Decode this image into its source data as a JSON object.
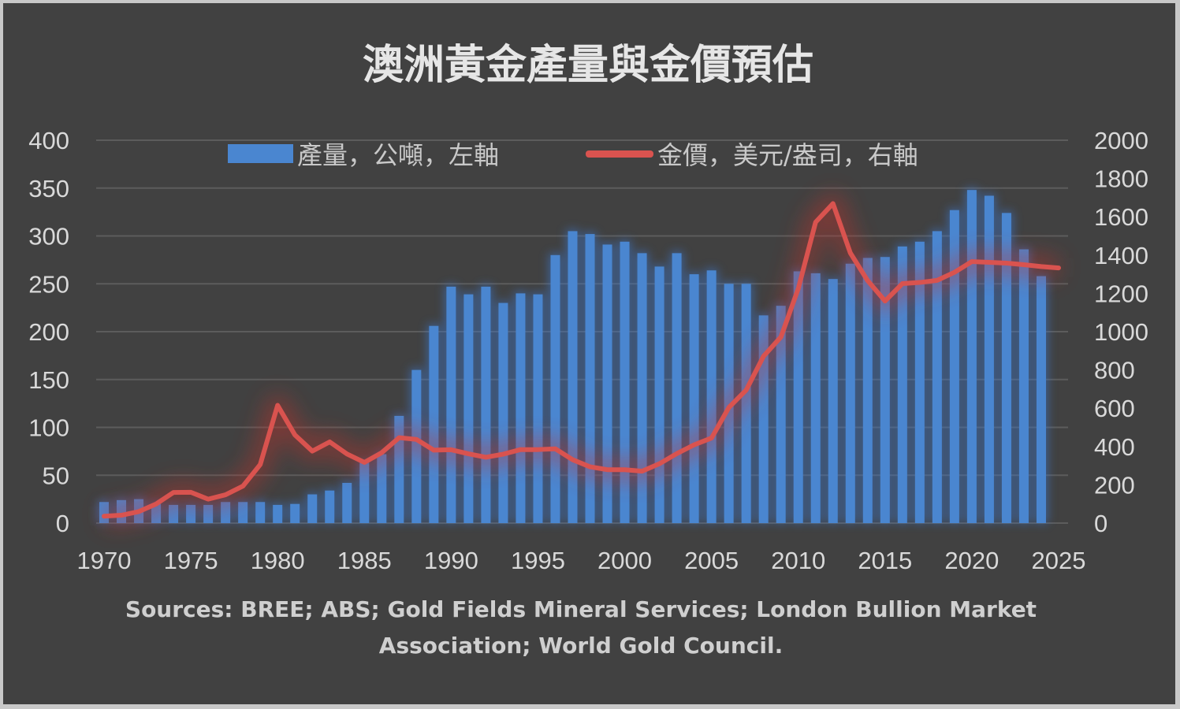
{
  "chart_data": {
    "type": "bar",
    "title": "澳洲黃金產量與金價預估",
    "x": [
      1970,
      1971,
      1972,
      1973,
      1974,
      1975,
      1976,
      1977,
      1978,
      1979,
      1980,
      1981,
      1982,
      1983,
      1984,
      1985,
      1986,
      1987,
      1988,
      1989,
      1990,
      1991,
      1992,
      1993,
      1994,
      1995,
      1996,
      1997,
      1998,
      1999,
      2000,
      2001,
      2002,
      2003,
      2004,
      2005,
      2006,
      2007,
      2008,
      2009,
      2010,
      2011,
      2012,
      2013,
      2014,
      2015,
      2016,
      2017,
      2018,
      2019,
      2020,
      2021,
      2022,
      2023,
      2024,
      2025
    ],
    "series": [
      {
        "name": "產量，公噸，左軸",
        "type": "bar",
        "axis": "left",
        "color": "#4a86d0",
        "values": [
          22,
          24,
          25,
          20,
          19,
          19,
          19,
          22,
          22,
          22,
          19,
          20,
          30,
          34,
          42,
          63,
          72,
          112,
          160,
          206,
          247,
          239,
          247,
          230,
          240,
          239,
          280,
          305,
          302,
          291,
          294,
          282,
          268,
          282,
          260,
          264,
          250,
          250,
          217,
          227,
          263,
          261,
          255,
          271,
          277,
          278,
          289,
          294,
          305,
          327,
          348,
          342,
          324,
          286,
          258,
          null
        ]
      },
      {
        "name": "金價，美元/盎司，右軸",
        "type": "line",
        "axis": "right",
        "color": "#d9534f",
        "values": [
          36,
          41,
          60,
          100,
          160,
          161,
          125,
          148,
          193,
          306,
          615,
          460,
          376,
          424,
          361,
          317,
          368,
          446,
          437,
          381,
          383,
          362,
          344,
          360,
          384,
          384,
          388,
          331,
          294,
          279,
          279,
          271,
          310,
          363,
          409,
          444,
          604,
          695,
          872,
          972,
          1225,
          1572,
          1669,
          1411,
          1266,
          1160,
          1251,
          1257,
          1268,
          1310,
          1366,
          1362,
          1358,
          1350,
          1340,
          1333
        ]
      }
    ],
    "left_axis": {
      "range": [
        0,
        400
      ],
      "ticks": [
        "0",
        "50",
        "100",
        "150",
        "200",
        "250",
        "300",
        "350",
        "400"
      ]
    },
    "right_axis": {
      "range": [
        0,
        2000
      ],
      "ticks": [
        "0",
        "200",
        "400",
        "600",
        "800",
        "1000",
        "1200",
        "1400",
        "1600",
        "1800",
        "2000"
      ]
    },
    "x_ticks": [
      "1970",
      "1975",
      "1980",
      "1985",
      "1990",
      "1995",
      "2000",
      "2005",
      "2010",
      "2015",
      "2020",
      "2025"
    ],
    "legend": {
      "placement": "top",
      "bar_label": "產量，公噸，左軸",
      "line_label": "金價，美元/盎司，右軸"
    },
    "grid": true,
    "source_line1": "Sources: BREE; ABS; Gold Fields Mineral Services; London Bullion Market",
    "source_line2": "Association; World Gold Council."
  }
}
